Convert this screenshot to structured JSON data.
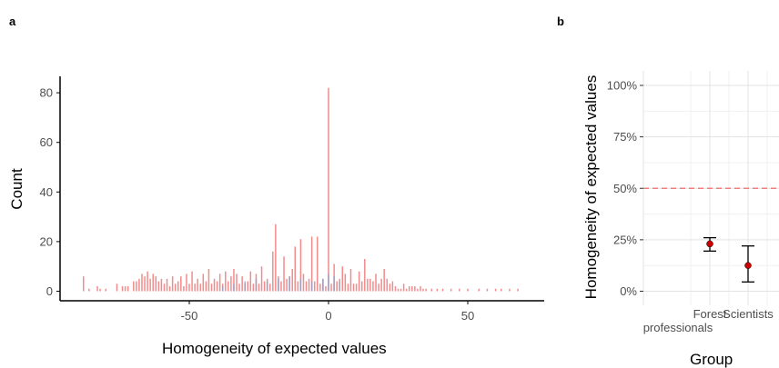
{
  "chart_data": [
    {
      "panel": "a",
      "type": "bar",
      "xlabel": "Homogeneity of expected values",
      "ylabel": "Count",
      "xlim": [
        -90,
        72
      ],
      "ylim": [
        0,
        86
      ],
      "xticks": [
        -50,
        0,
        50
      ],
      "yticks": [
        0,
        20,
        40,
        60,
        80
      ],
      "grid": false,
      "legend": "none",
      "series": [
        {
          "color": "#f08080",
          "x": [
            -88,
            -86,
            -83,
            -82,
            -80,
            -76,
            -74,
            -73,
            -72,
            -70,
            -69,
            -68,
            -67,
            -66,
            -65,
            -64,
            -63,
            -62,
            -61,
            -60,
            -59,
            -58,
            -57,
            -56,
            -55,
            -54,
            -53,
            -52,
            -51,
            -50,
            -49,
            -48,
            -47,
            -46,
            -45,
            -44,
            -43,
            -42,
            -41,
            -40,
            -39,
            -38,
            -37,
            -36,
            -35,
            -34,
            -33,
            -32,
            -31,
            -30,
            -29,
            -28,
            -27,
            -26,
            -25,
            -24,
            -23,
            -22,
            -21,
            -20,
            -19,
            -18,
            -17,
            -16,
            -15,
            -14,
            -13,
            -12,
            -11,
            -10,
            -9,
            -8,
            -7,
            -6,
            -5,
            -4,
            -3,
            -2,
            -1,
            0,
            1,
            2,
            3,
            4,
            5,
            6,
            7,
            8,
            9,
            10,
            11,
            12,
            13,
            14,
            15,
            16,
            17,
            18,
            19,
            20,
            21,
            22,
            23,
            24,
            25,
            26,
            27,
            28,
            29,
            30,
            31,
            32,
            33,
            34,
            35,
            37,
            39,
            41,
            44,
            47,
            50,
            54,
            57,
            60,
            62,
            65,
            68
          ],
          "values": [
            6,
            1,
            2,
            1,
            1,
            3,
            2,
            2,
            2,
            4,
            4,
            5,
            7,
            6,
            8,
            5,
            7,
            6,
            4,
            5,
            3,
            5,
            2,
            6,
            3,
            4,
            6,
            2,
            7,
            3,
            8,
            3,
            5,
            3,
            7,
            4,
            9,
            3,
            5,
            4,
            7,
            3,
            8,
            4,
            6,
            9,
            7,
            3,
            6,
            3,
            4,
            8,
            3,
            7,
            3,
            10,
            4,
            5,
            3,
            16,
            27,
            6,
            4,
            14,
            5,
            6,
            9,
            18,
            4,
            21,
            7,
            4,
            5,
            22,
            4,
            22,
            3,
            5,
            2,
            82,
            3,
            11,
            4,
            5,
            10,
            7,
            3,
            9,
            3,
            3,
            8,
            4,
            13,
            5,
            5,
            4,
            7,
            3,
            5,
            9,
            5,
            3,
            4,
            2,
            1,
            1,
            3,
            1,
            2,
            2,
            2,
            1,
            2,
            1,
            1,
            1,
            1,
            1,
            1,
            1,
            1,
            1,
            1,
            1,
            1,
            1,
            1
          ]
        },
        {
          "color": "#8da0cb",
          "x": [
            -38,
            -34,
            -30,
            -26,
            -22,
            -18,
            -14,
            -10,
            -6,
            -2,
            0,
            2,
            4
          ],
          "values": [
            2,
            3,
            4,
            5,
            4,
            5,
            6,
            5,
            4,
            5,
            7,
            6,
            4
          ]
        }
      ]
    },
    {
      "panel": "b",
      "type": "scatter",
      "xlabel": "Group",
      "ylabel": "Homogeneity of expected values",
      "categories": [
        "Forest professionals",
        "Scientists"
      ],
      "ylim": [
        0,
        100
      ],
      "yticks": [
        "0%",
        "25%",
        "50%",
        "75%",
        "100%"
      ],
      "grid": true,
      "reference_line": {
        "y": 50,
        "color": "#f08080",
        "style": "dashed"
      },
      "point_color": "#cc0000",
      "points": [
        {
          "category": "Forest professionals",
          "y": 23,
          "lower": 19.5,
          "upper": 26
        },
        {
          "category": "Scientists",
          "y": 12.5,
          "lower": 4.5,
          "upper": 22
        }
      ]
    }
  ],
  "labels": {
    "panel_a_letter": "a",
    "panel_b_letter": "b",
    "cat1_line1": "Forest",
    "cat1_line2": "professionals",
    "cat2": "Scientists"
  }
}
